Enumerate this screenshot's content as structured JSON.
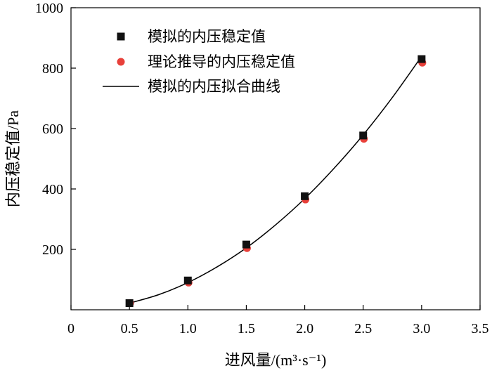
{
  "chart_data": {
    "type": "scatter",
    "xlabel": "进风量/(m³·s⁻¹)",
    "ylabel": "内压稳定值/Pa",
    "xlim": [
      0,
      3.5
    ],
    "ylim": [
      0,
      1000
    ],
    "xticks": [
      "0",
      "0.5",
      "1.0",
      "1.5",
      "2.0",
      "2.5",
      "3.0",
      "3.5"
    ],
    "xtick_values": [
      0,
      0.5,
      1.0,
      1.5,
      2.0,
      2.5,
      3.0,
      3.5
    ],
    "yticks": [
      "200",
      "400",
      "600",
      "800",
      "1000"
    ],
    "ytick_values": [
      200,
      400,
      600,
      800,
      1000
    ],
    "legend_position": "top-left",
    "series": [
      {
        "name": "模拟的内压稳定值",
        "marker": "square",
        "color": "#111111",
        "x": [
          0.5,
          1.0,
          1.5,
          2.0,
          2.5,
          3.0
        ],
        "y": [
          22,
          97,
          216,
          376,
          577,
          830
        ]
      },
      {
        "name": "理论推导的内压稳定值",
        "marker": "circle",
        "color": "#e8403a",
        "x": [
          0.5,
          1.0,
          1.5,
          2.0,
          2.5,
          3.0
        ],
        "y": [
          22,
          90,
          204,
          365,
          566,
          818
        ]
      },
      {
        "name": "模拟的内压拟合曲线",
        "marker": "line",
        "color": "#000000",
        "x": [
          0.5,
          0.75,
          1.0,
          1.25,
          1.5,
          1.75,
          2.0,
          2.25,
          2.5,
          2.75,
          3.0
        ],
        "y": [
          22,
          50,
          90,
          142,
          205,
          281,
          368,
          468,
          579,
          703,
          839
        ]
      }
    ]
  }
}
